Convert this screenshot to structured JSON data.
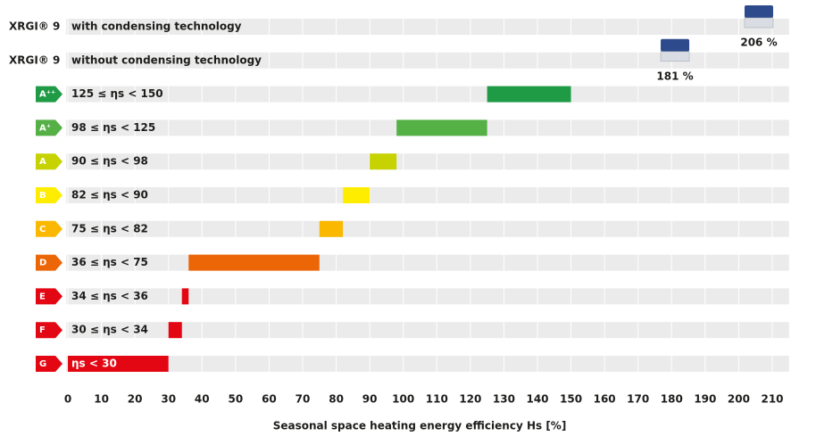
{
  "chart_data": {
    "type": "range-bar",
    "xlabel": "Seasonal space heating energy efficiency Hs [%]",
    "xlim": [
      0,
      215
    ],
    "xticks": [
      0,
      10,
      20,
      30,
      40,
      50,
      60,
      70,
      80,
      90,
      100,
      110,
      120,
      130,
      140,
      150,
      160,
      170,
      180,
      190,
      200,
      210
    ],
    "grid": true,
    "products": [
      {
        "name": "XRGI® 9",
        "label": "with condensing technology",
        "value": 206,
        "value_label": "206 %"
      },
      {
        "name": "XRGI® 9",
        "label": "without condensing technology",
        "value": 181,
        "value_label": "181 %"
      }
    ],
    "classes": [
      {
        "class": "A⁺⁺",
        "label": "125 ≤ ηs < 150",
        "values": [
          125,
          150
        ],
        "color": "#1f9a45"
      },
      {
        "class": "A⁺",
        "label": "98 ≤ ηs < 125",
        "values": [
          98,
          125
        ],
        "color": "#55b146"
      },
      {
        "class": "A",
        "label": "90 ≤ ηs < 98",
        "values": [
          90,
          98
        ],
        "color": "#c6d300"
      },
      {
        "class": "B",
        "label": "82 ≤ ηs < 90",
        "values": [
          82,
          90
        ],
        "color": "#ffed00"
      },
      {
        "class": "C",
        "label": "75 ≤ ηs < 82",
        "values": [
          75,
          82
        ],
        "color": "#fbb800"
      },
      {
        "class": "D",
        "label": "36 ≤ ηs < 75",
        "values": [
          36,
          75
        ],
        "color": "#ec6608"
      },
      {
        "class": "E",
        "label": "34 ≤ ηs < 36",
        "values": [
          34,
          36
        ],
        "color": "#e30613"
      },
      {
        "class": "F",
        "label": "30 ≤ ηs < 34",
        "values": [
          30,
          34
        ],
        "color": "#e30613"
      },
      {
        "class": "G",
        "label": "ηs < 30",
        "values": [
          0,
          30
        ],
        "color": "#e30613"
      }
    ]
  }
}
